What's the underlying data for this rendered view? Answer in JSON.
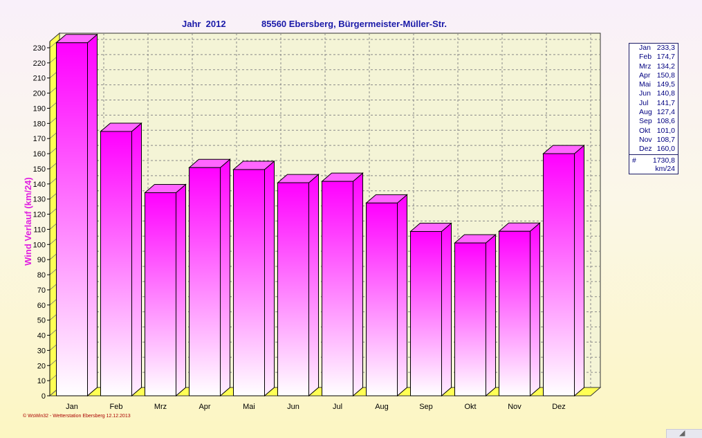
{
  "header": {
    "year_label": "Jahr  2012",
    "station": "85560 Ebersberg, Bürgermeister-Müller-Str."
  },
  "chart_data": {
    "type": "bar",
    "style": "3d",
    "categories": [
      "Jan",
      "Feb",
      "Mrz",
      "Apr",
      "Mai",
      "Jun",
      "Jul",
      "Aug",
      "Sep",
      "Okt",
      "Nov",
      "Dez"
    ],
    "values": [
      233.3,
      174.7,
      134.2,
      150.8,
      149.5,
      140.8,
      141.7,
      127.4,
      108.6,
      101.0,
      108.7,
      160.0
    ],
    "ylabel": "Wind Verlauf  (km/24)",
    "ylim": [
      0,
      230
    ],
    "ytick_step": 10,
    "grid": true,
    "bar_color": "#ff00ff",
    "floor_color": "#ffff66"
  },
  "legend": {
    "items": [
      {
        "month": "Jan",
        "value": "233,3"
      },
      {
        "month": "Feb",
        "value": "174,7"
      },
      {
        "month": "Mrz",
        "value": "134,2"
      },
      {
        "month": "Apr",
        "value": "150,8"
      },
      {
        "month": "Mai",
        "value": "149,5"
      },
      {
        "month": "Jun",
        "value": "140,8"
      },
      {
        "month": "Jul",
        "value": "141,7"
      },
      {
        "month": "Aug",
        "value": "127,4"
      },
      {
        "month": "Sep",
        "value": "108,6"
      },
      {
        "month": "Okt",
        "value": "101,0"
      },
      {
        "month": "Nov",
        "value": "108,7"
      },
      {
        "month": "Dez",
        "value": "160,0"
      }
    ],
    "total_symbol": "#",
    "total_value": "1730,8",
    "total_unit": "km/24"
  },
  "footer": {
    "credit": "© WsWin32  -  Wetterstation Ebersberg  12.12.2013"
  },
  "icons": {
    "resize_grip": "resize-grip-icon"
  }
}
